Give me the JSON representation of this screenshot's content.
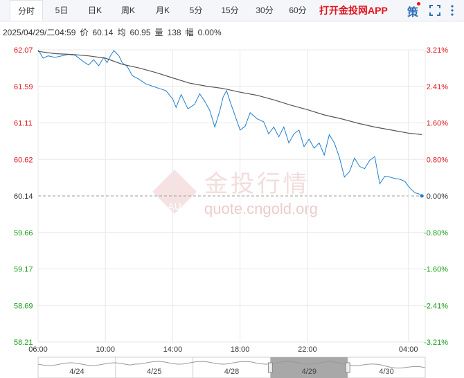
{
  "tabs": [
    {
      "label": "分时",
      "active": true
    },
    {
      "label": "5日"
    },
    {
      "label": "日K"
    },
    {
      "label": "周K"
    },
    {
      "label": "月K"
    },
    {
      "label": "5分"
    },
    {
      "label": "15分"
    },
    {
      "label": "30分"
    },
    {
      "label": "60分"
    }
  ],
  "promo_text": "打开金投网APP",
  "policy_label": "策",
  "info": {
    "datetime": "2025/04/29/二04:59",
    "price_label": "价",
    "price": "60.14",
    "avg_label": "均",
    "avg": "60.95",
    "vol_label": "量",
    "vol": "138",
    "change_label": "幅",
    "change": "0.00%"
  },
  "watermark": {
    "cn": "金投行情",
    "url": "quote.cngold.org",
    "badge": "AU"
  },
  "colors": {
    "up": "#e0161f",
    "down": "#1a9c1a",
    "price_line": "#1f7fd0",
    "avg_line": "#555555",
    "grid": "#e8e8e8",
    "tab_active": "#ffffff"
  },
  "chart_data": {
    "type": "line",
    "y_left_ticks": [
      "62.07",
      "61.59",
      "61.11",
      "60.62",
      "60.14",
      "59.66",
      "59.17",
      "58.69",
      "58.21"
    ],
    "y_right_ticks": [
      "3.21%",
      "2.41%",
      "1.60%",
      "0.80%",
      "0.00%",
      "-0.80%",
      "-1.60%",
      "-2.41%",
      "-3.21%"
    ],
    "ylim": [
      58.21,
      62.07
    ],
    "reference_price": 60.14,
    "x_ticks": [
      "06:00",
      "10:00",
      "14:00",
      "18:00",
      "22:00",
      "04:00"
    ],
    "x_hours": [
      6,
      10,
      14,
      18,
      22,
      28
    ],
    "xlim": [
      6,
      29
    ],
    "series": [
      {
        "values": [
          [
            6.0,
            62.07
          ],
          [
            6.3,
            61.96
          ],
          [
            6.6,
            61.99
          ],
          [
            7.0,
            61.97
          ],
          [
            7.4,
            61.99
          ],
          [
            7.8,
            62.01
          ],
          [
            8.2,
            62.0
          ],
          [
            8.6,
            61.93
          ],
          [
            9.0,
            61.87
          ],
          [
            9.3,
            61.94
          ],
          [
            9.6,
            61.86
          ],
          [
            9.9,
            61.97
          ],
          [
            10.1,
            61.9
          ],
          [
            10.3,
            61.99
          ],
          [
            10.5,
            62.06
          ],
          [
            10.8,
            61.99
          ],
          [
            11.0,
            61.9
          ],
          [
            11.3,
            61.85
          ],
          [
            11.6,
            61.73
          ],
          [
            12.0,
            61.68
          ],
          [
            12.4,
            61.62
          ],
          [
            12.8,
            61.59
          ],
          [
            13.2,
            61.56
          ],
          [
            13.6,
            61.53
          ],
          [
            14.0,
            61.42
          ],
          [
            14.2,
            61.31
          ],
          [
            14.5,
            61.48
          ],
          [
            14.9,
            61.29
          ],
          [
            15.3,
            61.35
          ],
          [
            15.6,
            61.49
          ],
          [
            15.9,
            61.39
          ],
          [
            16.2,
            61.27
          ],
          [
            16.5,
            61.05
          ],
          [
            16.8,
            61.27
          ],
          [
            17.0,
            61.45
          ],
          [
            17.2,
            61.53
          ],
          [
            17.4,
            61.39
          ],
          [
            17.7,
            61.2
          ],
          [
            18.0,
            61.01
          ],
          [
            18.3,
            61.06
          ],
          [
            18.6,
            61.24
          ],
          [
            19.0,
            61.16
          ],
          [
            19.4,
            61.12
          ],
          [
            19.7,
            60.96
          ],
          [
            20.0,
            61.05
          ],
          [
            20.3,
            60.92
          ],
          [
            20.6,
            61.05
          ],
          [
            20.9,
            60.84
          ],
          [
            21.2,
            60.96
          ],
          [
            21.5,
            61.01
          ],
          [
            21.8,
            60.79
          ],
          [
            22.1,
            60.89
          ],
          [
            22.4,
            60.77
          ],
          [
            22.7,
            60.84
          ],
          [
            23.0,
            60.68
          ],
          [
            23.3,
            60.95
          ],
          [
            23.6,
            60.84
          ],
          [
            23.9,
            60.65
          ],
          [
            24.2,
            60.39
          ],
          [
            24.5,
            60.46
          ],
          [
            24.8,
            60.64
          ],
          [
            25.1,
            60.53
          ],
          [
            25.4,
            60.5
          ],
          [
            25.7,
            60.61
          ],
          [
            26.0,
            60.66
          ],
          [
            26.3,
            60.3
          ],
          [
            26.6,
            60.4
          ],
          [
            26.9,
            60.39
          ],
          [
            27.2,
            60.37
          ],
          [
            27.5,
            60.36
          ],
          [
            27.8,
            60.33
          ],
          [
            28.0,
            60.27
          ],
          [
            28.2,
            60.22
          ],
          [
            28.4,
            60.18
          ],
          [
            28.6,
            60.17
          ],
          [
            28.8,
            60.14
          ]
        ]
      },
      {
        "values": [
          [
            6.0,
            62.05
          ],
          [
            7.0,
            62.02
          ],
          [
            8.0,
            62.01
          ],
          [
            9.0,
            61.99
          ],
          [
            10.0,
            61.96
          ],
          [
            11.0,
            61.88
          ],
          [
            12.0,
            61.83
          ],
          [
            13.0,
            61.77
          ],
          [
            14.0,
            61.7
          ],
          [
            15.0,
            61.63
          ],
          [
            16.0,
            61.59
          ],
          [
            17.0,
            61.56
          ],
          [
            18.0,
            61.51
          ],
          [
            19.0,
            61.47
          ],
          [
            20.0,
            61.41
          ],
          [
            21.0,
            61.34
          ],
          [
            22.0,
            61.28
          ],
          [
            23.0,
            61.21
          ],
          [
            24.0,
            61.16
          ],
          [
            25.0,
            61.1
          ],
          [
            26.0,
            61.05
          ],
          [
            27.0,
            61.01
          ],
          [
            28.0,
            60.97
          ],
          [
            28.8,
            60.95
          ]
        ]
      }
    ],
    "navigator_labels": [
      "4/24",
      "4/25",
      "4/28",
      "4/29",
      "4/30"
    ]
  }
}
